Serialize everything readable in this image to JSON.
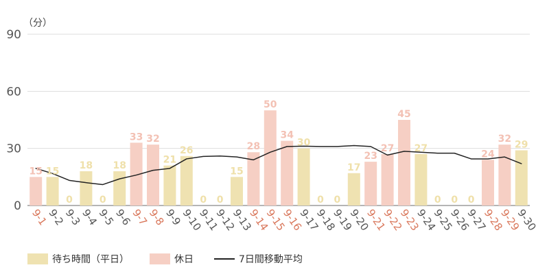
{
  "chart_data": {
    "type": "bar",
    "y_unit_label": "（分）",
    "ylim": [
      0,
      90
    ],
    "yticks": [
      0,
      30,
      60,
      90
    ],
    "grid": true,
    "legend_position": "bottom-left",
    "colors": {
      "weekday": "#efe2b1",
      "holiday": "#f6cfc4",
      "weekday_label": "#efe0aa",
      "holiday_label": "#f3c1b4",
      "line": "#222222",
      "grid": "#dddddd",
      "axis": "#888888",
      "xtick_weekday": "#555555",
      "xtick_holiday": "#d9775b"
    },
    "categories": [
      "9-1",
      "9-2",
      "9-3",
      "9-4",
      "9-5",
      "9-6",
      "9-7",
      "9-8",
      "9-9",
      "9-10",
      "9-11",
      "9-12",
      "9-13",
      "9-14",
      "9-15",
      "9-16",
      "9-17",
      "9-18",
      "9-19",
      "9-20",
      "9-21",
      "9-22",
      "9-23",
      "9-24",
      "9-25",
      "9-26",
      "9-27",
      "9-28",
      "9-29",
      "9-30"
    ],
    "values": [
      15,
      15,
      0,
      18,
      0,
      18,
      33,
      32,
      21,
      26,
      0,
      0,
      15,
      28,
      50,
      34,
      30,
      0,
      0,
      17,
      23,
      27,
      45,
      27,
      0,
      0,
      0,
      24,
      32,
      29
    ],
    "day_type": [
      "holiday",
      "weekday",
      "weekday",
      "weekday",
      "weekday",
      "weekday",
      "holiday",
      "holiday",
      "weekday",
      "weekday",
      "weekday",
      "weekday",
      "weekday",
      "holiday",
      "holiday",
      "holiday",
      "weekday",
      "weekday",
      "weekday",
      "weekday",
      "holiday",
      "holiday",
      "holiday",
      "weekday",
      "weekday",
      "weekday",
      "weekday",
      "holiday",
      "holiday",
      "weekday"
    ],
    "series": [
      {
        "name": "待ち時間（平日）",
        "key": "weekday"
      },
      {
        "name": "休日",
        "key": "holiday"
      },
      {
        "name": "7日間移動平均",
        "key": "moving_average"
      }
    ],
    "moving_average": [
      19.5,
      16.8,
      13.2,
      12.0,
      11.0,
      14.0,
      16.0,
      18.5,
      19.5,
      24.5,
      25.8,
      26.0,
      25.5,
      24.0,
      28.0,
      31.0,
      31.2,
      31.0,
      31.0,
      31.5,
      31.0,
      26.5,
      28.5,
      28.0,
      27.5,
      27.5,
      24.5,
      24.5,
      25.5,
      22.0
    ]
  }
}
